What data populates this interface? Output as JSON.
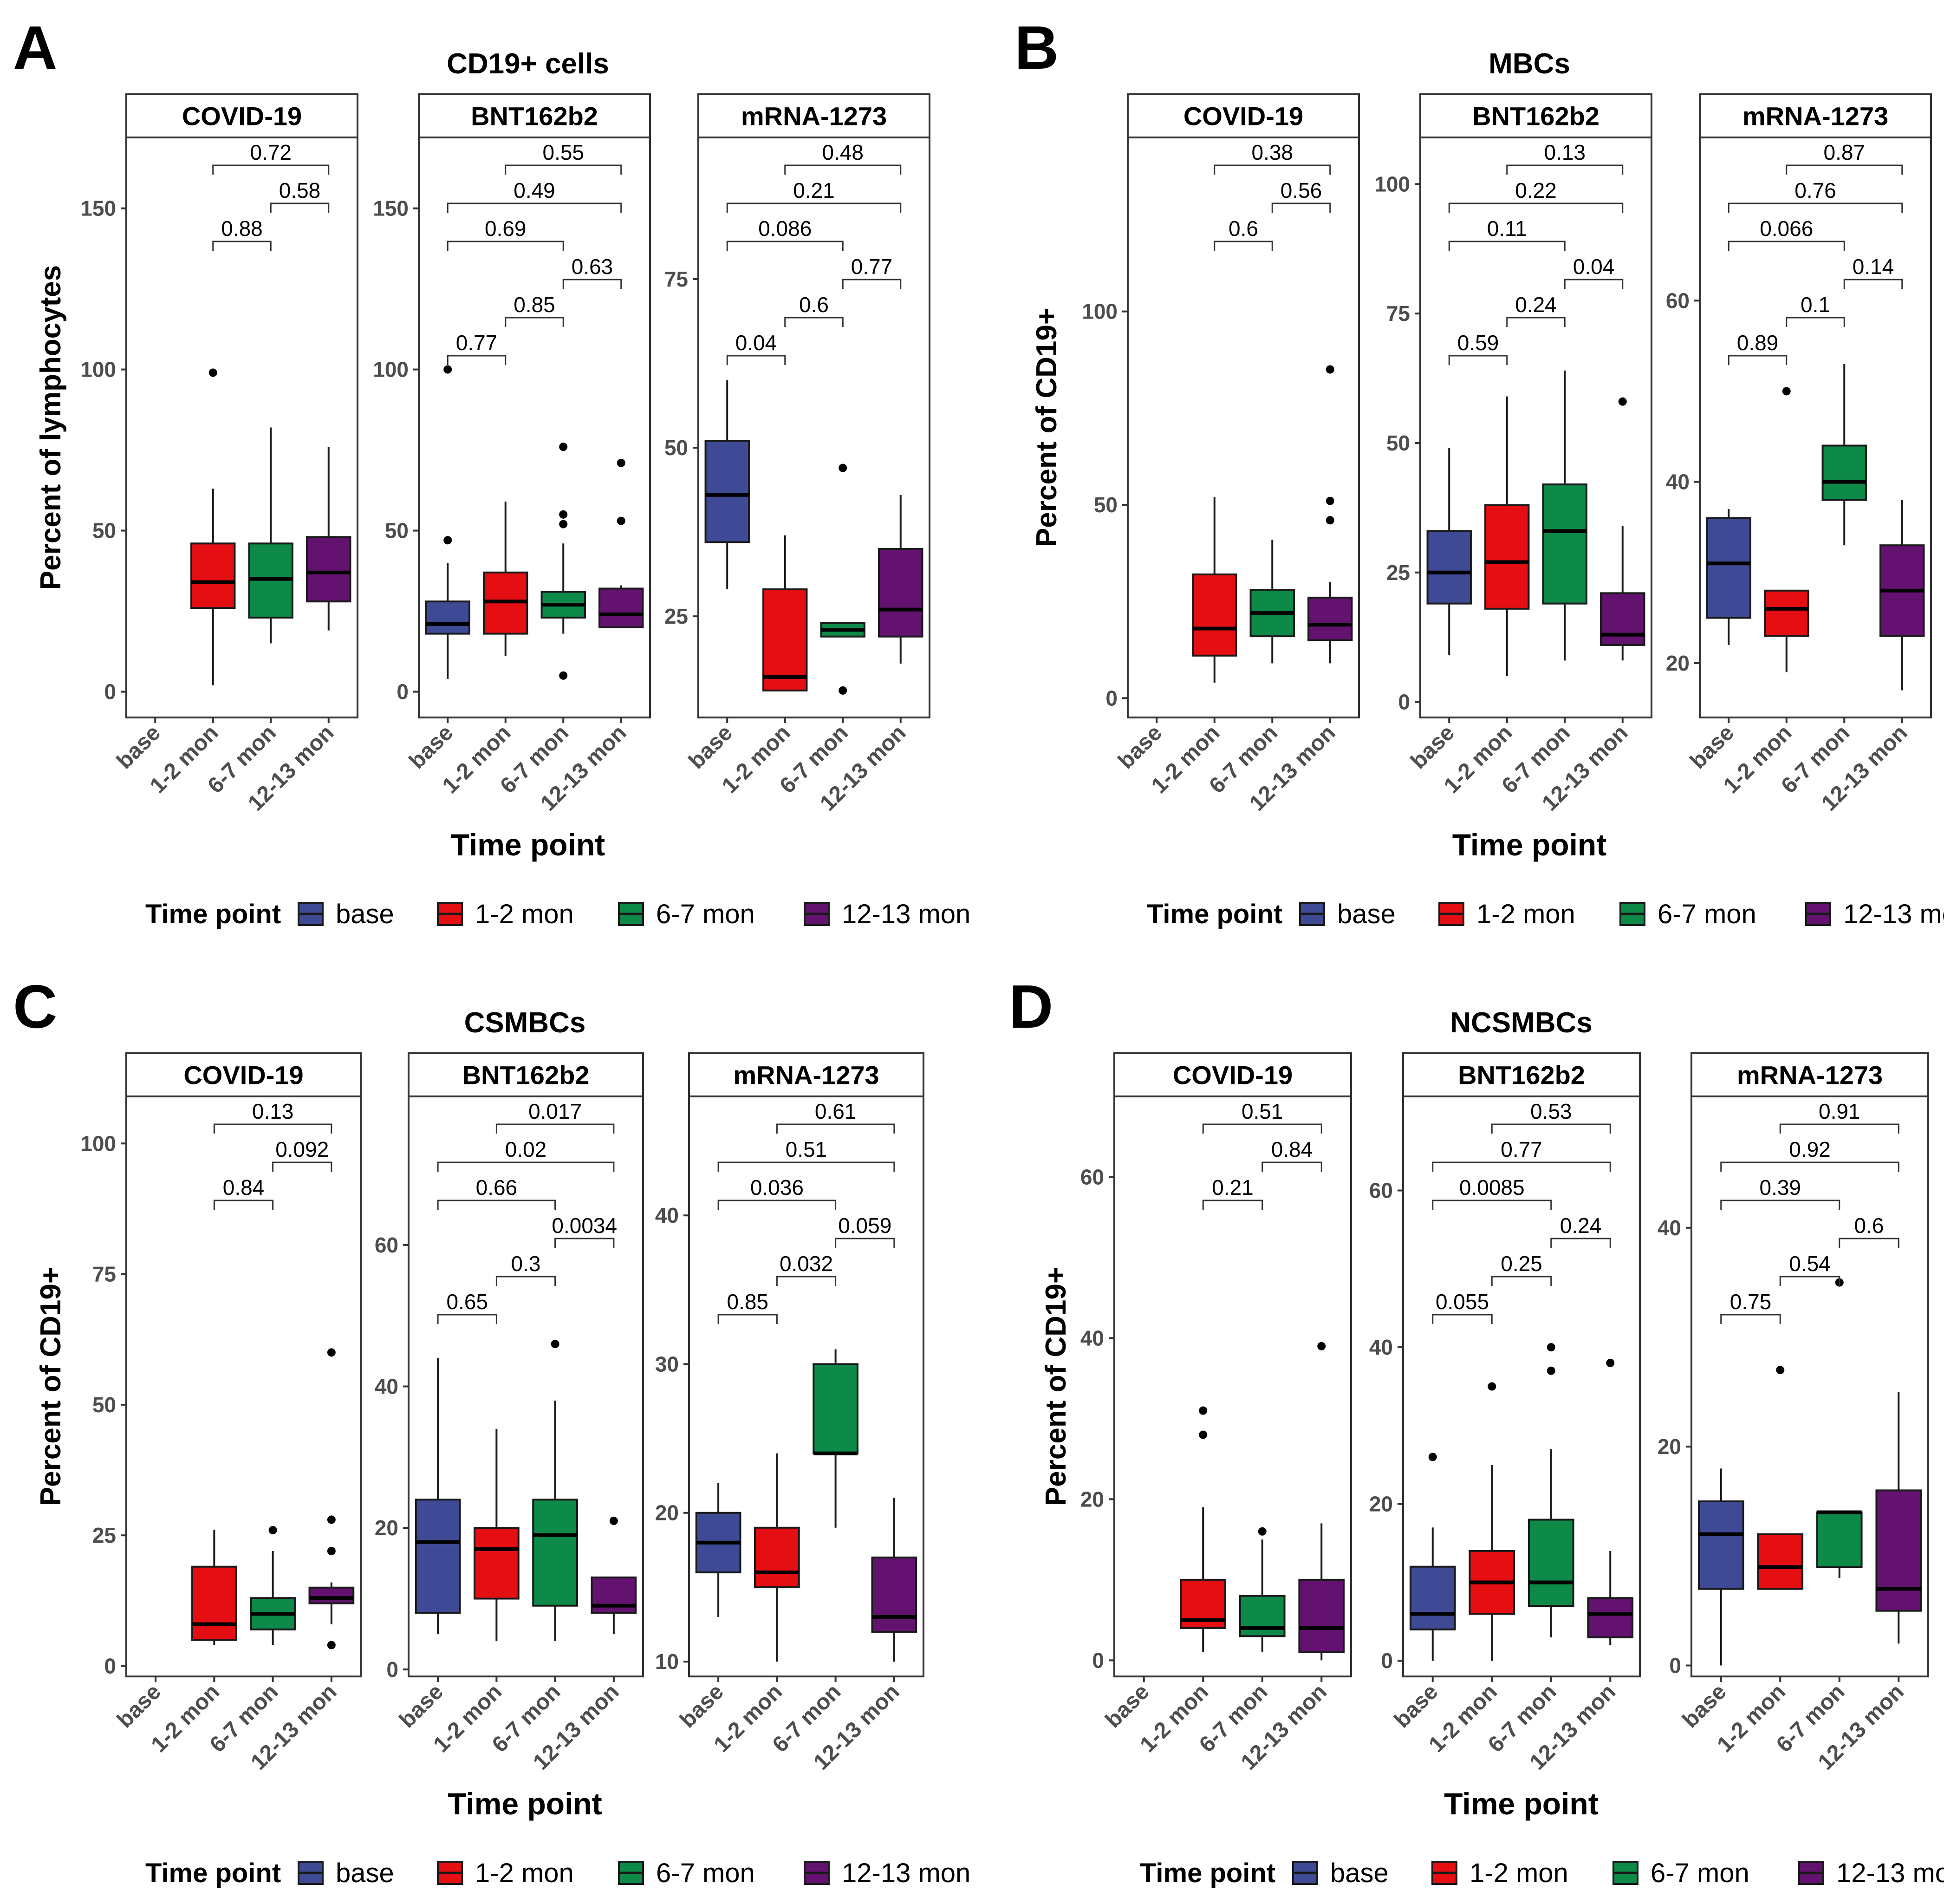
{
  "legend": {
    "title": "Time point",
    "entries": [
      "base",
      "1-2 mon",
      "6-7 mon",
      "12-13 mon"
    ]
  },
  "colors": {
    "base": "#3F4A96",
    "1-2 mon": "#E50E12",
    "6-7 mon": "#0E8A48",
    "12-13 mon": "#63136F",
    "box_stroke": "#1a1a1a",
    "text": "#000000",
    "tick_text": "#4d4d4d"
  },
  "chart_data": [
    {
      "panel_letter": "A",
      "type": "boxplot",
      "title": "CD19+ cells",
      "ylabel": "Percent of lymphocytes",
      "xlabel": "Time point",
      "categories": [
        "base",
        "1-2 mon",
        "6-7 mon",
        "12-13 mon"
      ],
      "facets": [
        {
          "name": "COVID-19",
          "ylim": [
            -8,
            172
          ],
          "yticks": [
            0,
            50,
            100,
            150
          ],
          "boxes": [
            null,
            {
              "min": 2,
              "q1": 26,
              "median": 34,
              "q3": 46,
              "max": 63,
              "outliers": [
                99
              ]
            },
            {
              "min": 15,
              "q1": 23,
              "median": 35,
              "q3": 46,
              "max": 82,
              "outliers": []
            },
            {
              "min": 19,
              "q1": 28,
              "median": 37,
              "q3": 48,
              "max": 76,
              "outliers": []
            }
          ],
          "comparisons": [
            {
              "a": 1,
              "b": 3,
              "p": "0.72"
            },
            {
              "a": 2,
              "b": 3,
              "p": "0.58"
            },
            {
              "a": 1,
              "b": 2,
              "p": "0.88"
            }
          ]
        },
        {
          "name": "BNT162b2",
          "ylim": [
            -8,
            172
          ],
          "yticks": [
            0,
            50,
            100,
            150
          ],
          "boxes": [
            {
              "min": 4,
              "q1": 18,
              "median": 21,
              "q3": 28,
              "max": 40,
              "outliers": [
                47,
                100
              ]
            },
            {
              "min": 11,
              "q1": 18,
              "median": 28,
              "q3": 37,
              "max": 59,
              "outliers": []
            },
            {
              "min": 18,
              "q1": 23,
              "median": 27,
              "q3": 31,
              "max": 46,
              "outliers": [
                5,
                52,
                55,
                76
              ]
            },
            {
              "min": 20,
              "q1": 20,
              "median": 24,
              "q3": 32,
              "max": 33,
              "outliers": [
                53,
                71
              ]
            }
          ],
          "comparisons": [
            {
              "a": 1,
              "b": 3,
              "p": "0.55"
            },
            {
              "a": 0,
              "b": 3,
              "p": "0.49"
            },
            {
              "a": 0,
              "b": 2,
              "p": "0.69"
            },
            {
              "a": 2,
              "b": 3,
              "p": "0.63"
            },
            {
              "a": 1,
              "b": 2,
              "p": "0.85"
            },
            {
              "a": 0,
              "b": 1,
              "p": "0.77"
            }
          ]
        },
        {
          "name": "mRNA-1273",
          "ylim": [
            10,
            96
          ],
          "yticks": [
            25,
            50,
            75
          ],
          "boxes": [
            {
              "min": 29,
              "q1": 36,
              "median": 43,
              "q3": 51,
              "max": 60,
              "outliers": []
            },
            {
              "min": 14,
              "q1": 14,
              "median": 16,
              "q3": 29,
              "max": 37,
              "outliers": []
            },
            {
              "min": 22,
              "q1": 22,
              "median": 23,
              "q3": 24,
              "max": 24,
              "outliers": [
                14,
                47
              ]
            },
            {
              "min": 18,
              "q1": 22,
              "median": 26,
              "q3": 35,
              "max": 43,
              "outliers": []
            }
          ],
          "comparisons": [
            {
              "a": 1,
              "b": 3,
              "p": "0.48"
            },
            {
              "a": 0,
              "b": 3,
              "p": "0.21"
            },
            {
              "a": 0,
              "b": 2,
              "p": "0.086"
            },
            {
              "a": 2,
              "b": 3,
              "p": "0.77"
            },
            {
              "a": 1,
              "b": 2,
              "p": "0.6"
            },
            {
              "a": 0,
              "b": 1,
              "p": "0.04"
            }
          ]
        }
      ]
    },
    {
      "panel_letter": "B",
      "type": "boxplot",
      "title": "MBCs",
      "ylabel": "Percent of CD19+",
      "xlabel": "Time point",
      "categories": [
        "base",
        "1-2 mon",
        "6-7 mon",
        "12-13 mon"
      ],
      "facets": [
        {
          "name": "COVID-19",
          "ylim": [
            -5,
            145
          ],
          "yticks": [
            0,
            50,
            100
          ],
          "boxes": [
            null,
            {
              "min": 4,
              "q1": 11,
              "median": 18,
              "q3": 32,
              "max": 52,
              "outliers": []
            },
            {
              "min": 9,
              "q1": 16,
              "median": 22,
              "q3": 28,
              "max": 41,
              "outliers": []
            },
            {
              "min": 9,
              "q1": 15,
              "median": 19,
              "q3": 26,
              "max": 30,
              "outliers": [
                46,
                51,
                85
              ]
            }
          ],
          "comparisons": [
            {
              "a": 1,
              "b": 3,
              "p": "0.38"
            },
            {
              "a": 2,
              "b": 3,
              "p": "0.56"
            },
            {
              "a": 1,
              "b": 2,
              "p": "0.6"
            }
          ]
        },
        {
          "name": "BNT162b2",
          "ylim": [
            -3,
            109
          ],
          "yticks": [
            0,
            25,
            50,
            75,
            100
          ],
          "boxes": [
            {
              "min": 9,
              "q1": 19,
              "median": 25,
              "q3": 33,
              "max": 49,
              "outliers": []
            },
            {
              "min": 5,
              "q1": 18,
              "median": 27,
              "q3": 38,
              "max": 59,
              "outliers": []
            },
            {
              "min": 8,
              "q1": 19,
              "median": 33,
              "q3": 42,
              "max": 64,
              "outliers": []
            },
            {
              "min": 8,
              "q1": 11,
              "median": 13,
              "q3": 21,
              "max": 34,
              "outliers": [
                58
              ]
            }
          ],
          "comparisons": [
            {
              "a": 1,
              "b": 3,
              "p": "0.13"
            },
            {
              "a": 0,
              "b": 3,
              "p": "0.22"
            },
            {
              "a": 0,
              "b": 2,
              "p": "0.11"
            },
            {
              "a": 2,
              "b": 3,
              "p": "0.04"
            },
            {
              "a": 1,
              "b": 2,
              "p": "0.24"
            },
            {
              "a": 0,
              "b": 1,
              "p": "0.59"
            }
          ]
        },
        {
          "name": "mRNA-1273",
          "ylim": [
            14,
            78
          ],
          "yticks": [
            20,
            40,
            60
          ],
          "boxes": [
            {
              "min": 22,
              "q1": 25,
              "median": 31,
              "q3": 36,
              "max": 37,
              "outliers": []
            },
            {
              "min": 19,
              "q1": 23,
              "median": 26,
              "q3": 28,
              "max": 28,
              "outliers": [
                50
              ]
            },
            {
              "min": 33,
              "q1": 38,
              "median": 40,
              "q3": 44,
              "max": 53,
              "outliers": []
            },
            {
              "min": 17,
              "q1": 23,
              "median": 28,
              "q3": 33,
              "max": 38,
              "outliers": []
            }
          ],
          "comparisons": [
            {
              "a": 1,
              "b": 3,
              "p": "0.87"
            },
            {
              "a": 0,
              "b": 3,
              "p": "0.76"
            },
            {
              "a": 0,
              "b": 2,
              "p": "0.066"
            },
            {
              "a": 2,
              "b": 3,
              "p": "0.14"
            },
            {
              "a": 1,
              "b": 2,
              "p": "0.1"
            },
            {
              "a": 0,
              "b": 1,
              "p": "0.89"
            }
          ]
        }
      ]
    },
    {
      "panel_letter": "C",
      "type": "boxplot",
      "title": "CSMBCs",
      "ylabel": "Percent of CD19+",
      "xlabel": "Time point",
      "categories": [
        "base",
        "1-2 mon",
        "6-7 mon",
        "12-13 mon"
      ],
      "facets": [
        {
          "name": "COVID-19",
          "ylim": [
            -2,
            109
          ],
          "yticks": [
            0,
            25,
            50,
            75,
            100
          ],
          "boxes": [
            null,
            {
              "min": 4,
              "q1": 5,
              "median": 8,
              "q3": 19,
              "max": 26,
              "outliers": []
            },
            {
              "min": 4,
              "q1": 7,
              "median": 10,
              "q3": 13,
              "max": 22,
              "outliers": [
                26
              ]
            },
            {
              "min": 8,
              "q1": 12,
              "median": 13,
              "q3": 15,
              "max": 16,
              "outliers": [
                4,
                22,
                28,
                60
              ]
            }
          ],
          "comparisons": [
            {
              "a": 1,
              "b": 3,
              "p": "0.13"
            },
            {
              "a": 2,
              "b": 3,
              "p": "0.092"
            },
            {
              "a": 1,
              "b": 2,
              "p": "0.84"
            }
          ]
        },
        {
          "name": "BNT162b2",
          "ylim": [
            -1,
            81
          ],
          "yticks": [
            0,
            20,
            40,
            60
          ],
          "boxes": [
            {
              "min": 5,
              "q1": 8,
              "median": 18,
              "q3": 24,
              "max": 44,
              "outliers": []
            },
            {
              "min": 4,
              "q1": 10,
              "median": 17,
              "q3": 20,
              "max": 34,
              "outliers": []
            },
            {
              "min": 4,
              "q1": 9,
              "median": 19,
              "q3": 24,
              "max": 38,
              "outliers": [
                46
              ]
            },
            {
              "min": 5,
              "q1": 8,
              "median": 9,
              "q3": 13,
              "max": 13,
              "outliers": [
                21
              ]
            }
          ],
          "comparisons": [
            {
              "a": 1,
              "b": 3,
              "p": "0.017"
            },
            {
              "a": 0,
              "b": 3,
              "p": "0.02"
            },
            {
              "a": 0,
              "b": 2,
              "p": "0.66"
            },
            {
              "a": 2,
              "b": 3,
              "p": "0.0034"
            },
            {
              "a": 1,
              "b": 2,
              "p": "0.3"
            },
            {
              "a": 0,
              "b": 1,
              "p": "0.65"
            }
          ]
        },
        {
          "name": "mRNA-1273",
          "ylim": [
            9,
            48
          ],
          "yticks": [
            10,
            20,
            30,
            40
          ],
          "boxes": [
            {
              "min": 13,
              "q1": 16,
              "median": 18,
              "q3": 20,
              "max": 22,
              "outliers": []
            },
            {
              "min": 10,
              "q1": 15,
              "median": 16,
              "q3": 19,
              "max": 24,
              "outliers": []
            },
            {
              "min": 19,
              "q1": 24,
              "median": 24,
              "q3": 30,
              "max": 31,
              "outliers": []
            },
            {
              "min": 10,
              "q1": 12,
              "median": 13,
              "q3": 17,
              "max": 21,
              "outliers": []
            }
          ],
          "comparisons": [
            {
              "a": 1,
              "b": 3,
              "p": "0.61"
            },
            {
              "a": 0,
              "b": 3,
              "p": "0.51"
            },
            {
              "a": 0,
              "b": 2,
              "p": "0.036"
            },
            {
              "a": 2,
              "b": 3,
              "p": "0.059"
            },
            {
              "a": 1,
              "b": 2,
              "p": "0.032"
            },
            {
              "a": 0,
              "b": 1,
              "p": "0.85"
            }
          ]
        }
      ]
    },
    {
      "panel_letter": "D",
      "type": "boxplot",
      "title": "NCSMBCs",
      "ylabel": "Percent of CD19+",
      "xlabel": "Time point",
      "categories": [
        "base",
        "1-2 mon",
        "6-7 mon",
        "12-13 mon"
      ],
      "facets": [
        {
          "name": "COVID-19",
          "ylim": [
            -2,
            70
          ],
          "yticks": [
            0,
            20,
            40,
            60
          ],
          "boxes": [
            null,
            {
              "min": 1,
              "q1": 4,
              "median": 5,
              "q3": 10,
              "max": 19,
              "outliers": [
                28,
                31
              ]
            },
            {
              "min": 1,
              "q1": 3,
              "median": 4,
              "q3": 8,
              "max": 15,
              "outliers": [
                16
              ]
            },
            {
              "min": 0,
              "q1": 1,
              "median": 4,
              "q3": 10,
              "max": 17,
              "outliers": [
                39
              ]
            }
          ],
          "comparisons": [
            {
              "a": 1,
              "b": 3,
              "p": "0.51"
            },
            {
              "a": 2,
              "b": 3,
              "p": "0.84"
            },
            {
              "a": 1,
              "b": 2,
              "p": "0.21"
            }
          ]
        },
        {
          "name": "BNT162b2",
          "ylim": [
            -2,
            72
          ],
          "yticks": [
            0,
            20,
            40,
            60
          ],
          "boxes": [
            {
              "min": 0,
              "q1": 4,
              "median": 6,
              "q3": 12,
              "max": 17,
              "outliers": [
                26
              ]
            },
            {
              "min": 0,
              "q1": 6,
              "median": 10,
              "q3": 14,
              "max": 25,
              "outliers": [
                35
              ]
            },
            {
              "min": 3,
              "q1": 7,
              "median": 10,
              "q3": 18,
              "max": 27,
              "outliers": [
                37,
                40
              ]
            },
            {
              "min": 2,
              "q1": 3,
              "median": 6,
              "q3": 8,
              "max": 14,
              "outliers": [
                38
              ]
            }
          ],
          "comparisons": [
            {
              "a": 1,
              "b": 3,
              "p": "0.53"
            },
            {
              "a": 0,
              "b": 3,
              "p": "0.77"
            },
            {
              "a": 0,
              "b": 2,
              "p": "0.0085"
            },
            {
              "a": 2,
              "b": 3,
              "p": "0.24"
            },
            {
              "a": 1,
              "b": 2,
              "p": "0.25"
            },
            {
              "a": 0,
              "b": 1,
              "p": "0.055"
            }
          ]
        },
        {
          "name": "mRNA-1273",
          "ylim": [
            -1,
            52
          ],
          "yticks": [
            0,
            20,
            40
          ],
          "boxes": [
            {
              "min": 0,
              "q1": 7,
              "median": 12,
              "q3": 15,
              "max": 18,
              "outliers": []
            },
            {
              "min": 7,
              "q1": 7,
              "median": 9,
              "q3": 12,
              "max": 12,
              "outliers": [
                27
              ]
            },
            {
              "min": 8,
              "q1": 9,
              "median": 14,
              "q3": 14,
              "max": 14,
              "outliers": [
                35
              ]
            },
            {
              "min": 2,
              "q1": 5,
              "median": 7,
              "q3": 16,
              "max": 25,
              "outliers": []
            }
          ],
          "comparisons": [
            {
              "a": 1,
              "b": 3,
              "p": "0.91"
            },
            {
              "a": 0,
              "b": 3,
              "p": "0.92"
            },
            {
              "a": 0,
              "b": 2,
              "p": "0.39"
            },
            {
              "a": 2,
              "b": 3,
              "p": "0.6"
            },
            {
              "a": 1,
              "b": 2,
              "p": "0.54"
            },
            {
              "a": 0,
              "b": 1,
              "p": "0.75"
            }
          ]
        }
      ]
    }
  ]
}
